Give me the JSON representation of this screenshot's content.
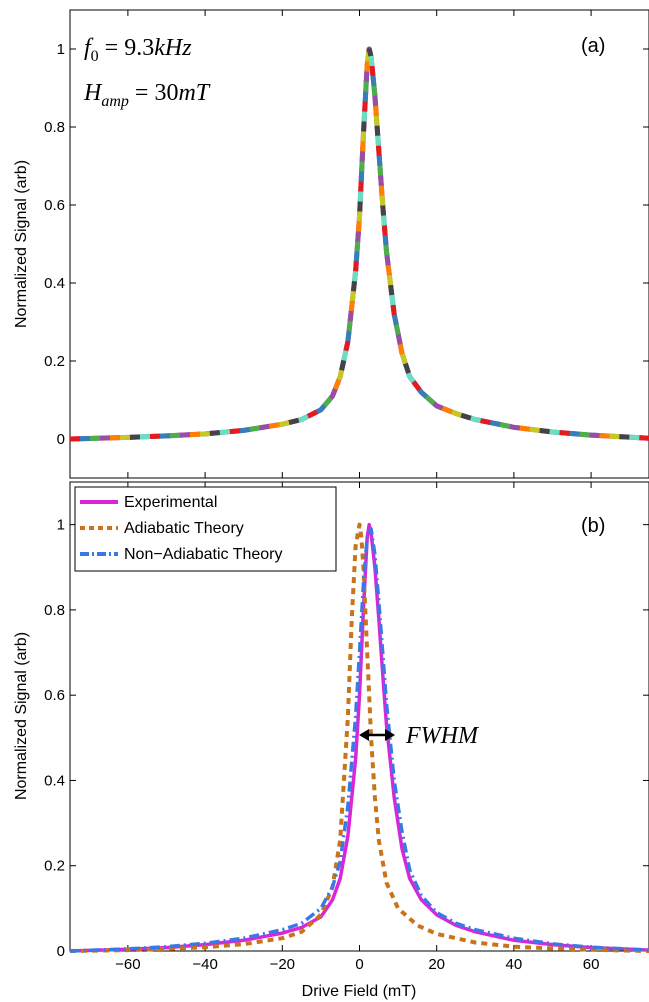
{
  "chart_data": [
    {
      "panel": "a",
      "type": "line",
      "panel_label": "(a)",
      "annotations": [
        "f_0 = 9.3kHz",
        "H_amp = 30mT"
      ],
      "ylabel": "Normalized Signal (arb)",
      "xlabel": "",
      "xlim": [
        -75,
        75
      ],
      "ylim": [
        -0.1,
        1.1
      ],
      "yticks": [
        0,
        0.2,
        0.4,
        0.6,
        0.8,
        1
      ],
      "ytick_labels": [
        "0",
        "0.2",
        "0.4",
        "0.6",
        "0.8",
        "1"
      ],
      "xticks": [
        -60,
        -40,
        -20,
        0,
        20,
        40,
        60
      ],
      "grid": false,
      "series": [
        {
          "color": "#e41a1c",
          "x": [
            -75,
            -60,
            -50,
            -40,
            -30,
            -20,
            -15,
            -10,
            -7,
            -5,
            -3,
            -1,
            0,
            1,
            2,
            2.5,
            3,
            4,
            5,
            6,
            7,
            9,
            11,
            13,
            16,
            20,
            25,
            30,
            40,
            50,
            60,
            75
          ],
          "y": [
            0.0,
            0.004,
            0.008,
            0.013,
            0.022,
            0.038,
            0.05,
            0.075,
            0.11,
            0.16,
            0.25,
            0.43,
            0.57,
            0.78,
            0.96,
            1.0,
            0.98,
            0.88,
            0.74,
            0.6,
            0.48,
            0.32,
            0.22,
            0.16,
            0.12,
            0.085,
            0.065,
            0.05,
            0.03,
            0.018,
            0.01,
            0.002
          ]
        }
      ]
    },
    {
      "panel": "b",
      "type": "line",
      "panel_label": "(b)",
      "annotations": [
        "FWHM"
      ],
      "ylabel": "Normalized Signal (arb)",
      "xlabel": "Drive Field (mT)",
      "xlim": [
        -75,
        75
      ],
      "ylim": [
        0,
        1.1
      ],
      "yticks": [
        0,
        0.2,
        0.4,
        0.6,
        0.8,
        1
      ],
      "ytick_labels": [
        "0",
        "0.2",
        "0.4",
        "0.6",
        "0.8",
        "1"
      ],
      "xticks": [
        -60,
        -40,
        -20,
        0,
        20,
        40,
        60
      ],
      "xtick_labels": [
        "−60",
        "−40",
        "−20",
        "0",
        "20",
        "40",
        "60"
      ],
      "legend_position": "top-left",
      "grid": false,
      "series": [
        {
          "name": "Experimental",
          "color": "#d926d9",
          "style": "solid",
          "x": [
            -75,
            -60,
            -50,
            -40,
            -30,
            -20,
            -15,
            -10,
            -7,
            -5,
            -3,
            -1,
            0,
            1,
            2,
            2.5,
            3,
            4,
            5,
            6,
            7,
            9,
            11,
            13,
            16,
            20,
            25,
            30,
            40,
            50,
            60,
            75
          ],
          "y": [
            0.0,
            0.004,
            0.008,
            0.015,
            0.025,
            0.042,
            0.055,
            0.08,
            0.12,
            0.17,
            0.27,
            0.45,
            0.6,
            0.8,
            0.97,
            1.0,
            0.98,
            0.9,
            0.78,
            0.65,
            0.53,
            0.36,
            0.24,
            0.17,
            0.12,
            0.085,
            0.06,
            0.045,
            0.025,
            0.015,
            0.008,
            0.002
          ]
        },
        {
          "name": "Adiabatic Theory",
          "color": "#c8741a",
          "style": "dashed",
          "x": [
            -75,
            -60,
            -50,
            -40,
            -30,
            -20,
            -15,
            -10,
            -7,
            -5,
            -3,
            -2,
            -1,
            0,
            0.5,
            1,
            2,
            3,
            4,
            5,
            7,
            10,
            15,
            20,
            30,
            40,
            50,
            60,
            75
          ],
          "y": [
            0.0,
            0.002,
            0.005,
            0.009,
            0.016,
            0.03,
            0.045,
            0.085,
            0.15,
            0.26,
            0.55,
            0.78,
            0.95,
            1.0,
            0.97,
            0.9,
            0.7,
            0.5,
            0.36,
            0.26,
            0.16,
            0.1,
            0.06,
            0.04,
            0.02,
            0.01,
            0.006,
            0.003,
            0.0
          ]
        },
        {
          "name": "Non−Adiabatic Theory",
          "color": "#3b78e7",
          "style": "dashdot",
          "x": [
            -75,
            -60,
            -50,
            -40,
            -30,
            -20,
            -15,
            -10,
            -7,
            -5,
            -3,
            -1,
            0,
            1,
            2,
            3,
            4,
            5,
            6,
            7,
            9,
            11,
            13,
            16,
            20,
            25,
            30,
            40,
            50,
            60,
            75
          ],
          "y": [
            0.0,
            0.005,
            0.01,
            0.018,
            0.03,
            0.05,
            0.065,
            0.1,
            0.15,
            0.21,
            0.34,
            0.55,
            0.7,
            0.86,
            0.97,
            0.99,
            0.93,
            0.82,
            0.7,
            0.58,
            0.4,
            0.28,
            0.19,
            0.13,
            0.09,
            0.065,
            0.05,
            0.03,
            0.017,
            0.009,
            0.002
          ]
        }
      ]
    }
  ]
}
